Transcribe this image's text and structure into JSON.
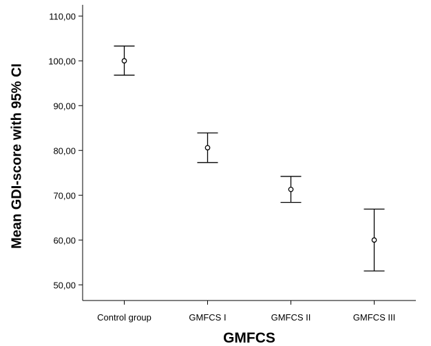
{
  "chart_data": {
    "type": "errorbar",
    "title": "",
    "xlabel": "GMFCS",
    "ylabel": "Mean GDI-score with 95% CI",
    "categories": [
      "Control group",
      "GMFCS I",
      "GMFCS II",
      "GMFCS III"
    ],
    "series": [
      {
        "means": [
          100.0,
          80.6,
          71.3,
          60.0
        ],
        "ci_lower": [
          96.8,
          77.3,
          68.4,
          53.1
        ],
        "ci_upper": [
          103.3,
          83.9,
          74.2,
          66.9
        ]
      }
    ],
    "ylim": [
      46.5,
      112.5
    ],
    "yticks": [
      50,
      60,
      70,
      80,
      90,
      100,
      110
    ],
    "ytick_labels": [
      "50,00",
      "60,00",
      "70,00",
      "80,00",
      "90,00",
      "100,00",
      "110,00"
    ],
    "grid": false,
    "legend": "none"
  }
}
